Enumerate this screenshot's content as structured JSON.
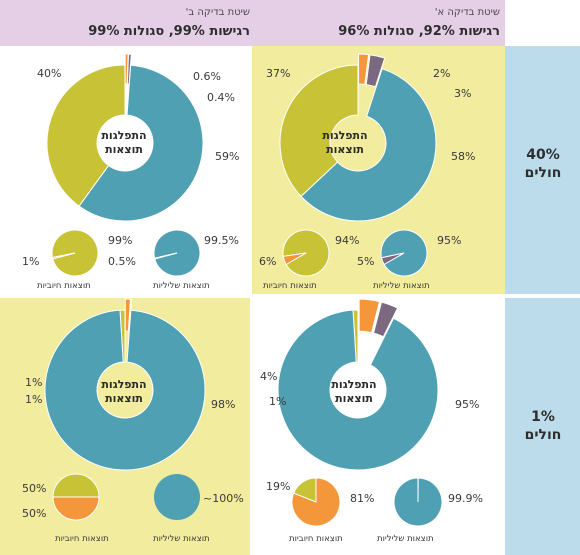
{
  "colors": {
    "positive": "#c8c236",
    "negative": "#4fa0b2",
    "false_pos": "#f3973a",
    "false_neg": "#7b6a7f",
    "highlight": "#f1ec9e",
    "header_bg": "#e4cfe6",
    "side_bg": "#bcdceb"
  },
  "headers": {
    "method_a": {
      "title": "שיטת בדיקה א'",
      "subtitle": "רגישות 92%, סגולות 96%"
    },
    "method_b": {
      "title": "שיטת בדיקה ב'",
      "subtitle": "רגישות 99%, סגולות 99%"
    }
  },
  "rows": {
    "sick40": {
      "value": "40%",
      "label": "חולים"
    },
    "sick1": {
      "value": "1%",
      "label": "חולים"
    }
  },
  "donut_center": {
    "line1": "התפלגות",
    "line2": "תוצאות"
  },
  "captions": {
    "positive": "תוצאות חיוביות",
    "negative": "תוצאות שליליות"
  },
  "chart_data": [
    {
      "id": "a40",
      "type": "pie",
      "donut": {
        "series": [
          {
            "name": "true_positive",
            "value": 37,
            "label": "37%"
          },
          {
            "name": "false_positive",
            "value": 2,
            "label": "2%"
          },
          {
            "name": "false_negative",
            "value": 3,
            "label": "3%"
          },
          {
            "name": "true_negative",
            "value": 58,
            "label": "58%"
          }
        ]
      },
      "pos_pie": {
        "series": [
          {
            "name": "true",
            "value": 94,
            "label": "94%"
          },
          {
            "name": "false",
            "value": 6,
            "label": "6%"
          }
        ]
      },
      "neg_pie": {
        "series": [
          {
            "name": "true",
            "value": 95,
            "label": "95%"
          },
          {
            "name": "false",
            "value": 5,
            "label": "5%"
          }
        ]
      }
    },
    {
      "id": "b40",
      "type": "pie",
      "donut": {
        "series": [
          {
            "name": "true_positive",
            "value": 40,
            "label": "40%"
          },
          {
            "name": "false_positive",
            "value": 0.6,
            "label": "0.6%"
          },
          {
            "name": "false_negative",
            "value": 0.4,
            "label": "0.4%"
          },
          {
            "name": "true_negative",
            "value": 59,
            "label": "59%"
          }
        ]
      },
      "pos_pie": {
        "series": [
          {
            "name": "true",
            "value": 99,
            "label": "99%"
          },
          {
            "name": "false",
            "value": 1,
            "label": "1%"
          }
        ]
      },
      "neg_pie": {
        "series": [
          {
            "name": "true",
            "value": 99.5,
            "label": "99.5%"
          },
          {
            "name": "false",
            "value": 0.5,
            "label": "0.5%"
          }
        ]
      }
    },
    {
      "id": "a1",
      "type": "pie",
      "donut": {
        "series": [
          {
            "name": "true_positive",
            "value": 1,
            "label": "1%"
          },
          {
            "name": "false_positive",
            "value": 4,
            "label": "4%"
          },
          {
            "name": "false_negative",
            "value": 0.1,
            "label": ""
          },
          {
            "name": "true_negative",
            "value": 95,
            "label": "95%"
          }
        ]
      },
      "pos_pie": {
        "series": [
          {
            "name": "true",
            "value": 19,
            "label": "19%"
          },
          {
            "name": "false",
            "value": 81,
            "label": "81%"
          }
        ]
      },
      "neg_pie": {
        "series": [
          {
            "name": "true",
            "value": 99.9,
            "label": "99.9%"
          },
          {
            "name": "false",
            "value": 0.1,
            "label": ""
          }
        ]
      }
    },
    {
      "id": "b1",
      "type": "pie",
      "donut": {
        "series": [
          {
            "name": "true_positive",
            "value": 1,
            "label": "1%"
          },
          {
            "name": "false_positive",
            "value": 1,
            "label": "1%"
          },
          {
            "name": "false_negative",
            "value": 0.01,
            "label": ""
          },
          {
            "name": "true_negative",
            "value": 98,
            "label": "98%"
          }
        ]
      },
      "pos_pie": {
        "series": [
          {
            "name": "true",
            "value": 50,
            "label": "50%"
          },
          {
            "name": "false",
            "value": 50,
            "label": "50%"
          }
        ]
      },
      "neg_pie": {
        "series": [
          {
            "name": "true",
            "value": 100,
            "label": "~100%"
          },
          {
            "name": "false",
            "value": 0,
            "label": ""
          }
        ]
      }
    }
  ]
}
